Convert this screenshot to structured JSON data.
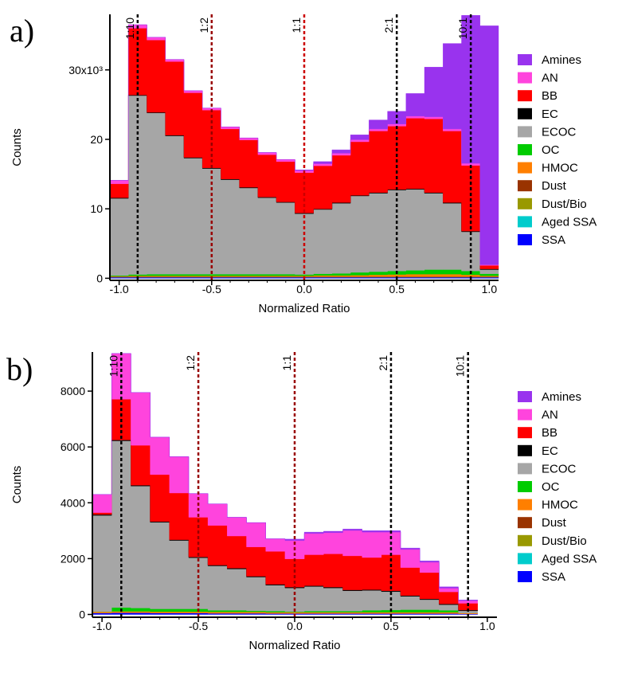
{
  "chart_data": [
    {
      "panel_label": "a)",
      "type": "area",
      "stacking": "stacked",
      "xlabel": "Normalized Ratio",
      "ylabel": "Counts",
      "xlim": [
        -1.05,
        1.05
      ],
      "ylim": [
        -300,
        38000
      ],
      "xticks": [
        {
          "value": -1.0,
          "label": "-1.0"
        },
        {
          "value": -0.5,
          "label": "-0.5"
        },
        {
          "value": 0.0,
          "label": "0.0"
        },
        {
          "value": 0.5,
          "label": "0.5"
        },
        {
          "value": 1.0,
          "label": "1.0"
        }
      ],
      "yticks": [
        {
          "value": 0,
          "label": "0"
        },
        {
          "value": 10000,
          "label": "10"
        },
        {
          "value": 20000,
          "label": "20"
        },
        {
          "value": 30000,
          "label": "30x10³"
        }
      ],
      "bin_edges": [
        -1.05,
        -0.95,
        -0.85,
        -0.75,
        -0.65,
        -0.55,
        -0.45,
        -0.35,
        -0.25,
        -0.15,
        -0.05,
        0.05,
        0.15,
        0.25,
        0.35,
        0.45,
        0.55,
        0.65,
        0.75,
        0.85,
        0.95,
        1.05
      ],
      "series": [
        {
          "name": "SSA",
          "color": "#0000ff",
          "values": [
            150,
            150,
            150,
            150,
            150,
            150,
            150,
            150,
            150,
            150,
            150,
            150,
            150,
            150,
            150,
            150,
            150,
            150,
            150,
            150,
            150
          ]
        },
        {
          "name": "Aged SSA",
          "color": "#00cccc",
          "values": [
            0,
            0,
            0,
            0,
            0,
            0,
            0,
            0,
            0,
            0,
            0,
            0,
            0,
            0,
            0,
            0,
            0,
            0,
            0,
            0,
            0
          ]
        },
        {
          "name": "Dust/Bio",
          "color": "#999900",
          "values": [
            50,
            50,
            50,
            50,
            50,
            50,
            50,
            50,
            50,
            50,
            50,
            50,
            50,
            50,
            50,
            50,
            50,
            50,
            50,
            50,
            50
          ]
        },
        {
          "name": "Dust",
          "color": "#993300",
          "values": [
            50,
            50,
            50,
            50,
            50,
            50,
            50,
            50,
            50,
            50,
            50,
            50,
            50,
            50,
            50,
            50,
            50,
            50,
            50,
            50,
            50
          ]
        },
        {
          "name": "HMOC",
          "color": "#ff7f00",
          "values": [
            50,
            100,
            100,
            100,
            100,
            100,
            100,
            100,
            100,
            100,
            100,
            150,
            150,
            200,
            250,
            300,
            350,
            350,
            350,
            250,
            100
          ]
        },
        {
          "name": "OC",
          "color": "#00cc00",
          "values": [
            100,
            200,
            250,
            250,
            250,
            250,
            250,
            250,
            250,
            250,
            200,
            250,
            300,
            400,
            450,
            500,
            550,
            650,
            650,
            550,
            300
          ]
        },
        {
          "name": "ECOC",
          "color": "#a6a6a6",
          "values": [
            11100,
            25750,
            23200,
            19900,
            16700,
            15200,
            13600,
            12400,
            11000,
            10300,
            8750,
            9250,
            10100,
            11000,
            11300,
            11650,
            11650,
            11000,
            9550,
            5650,
            600
          ]
        },
        {
          "name": "EC",
          "color": "#000000",
          "values": [
            100,
            100,
            100,
            100,
            100,
            100,
            100,
            100,
            100,
            100,
            100,
            100,
            100,
            100,
            100,
            100,
            100,
            100,
            100,
            100,
            100
          ]
        },
        {
          "name": "BB",
          "color": "#ff0000",
          "values": [
            2000,
            9600,
            10400,
            10600,
            9300,
            8300,
            7200,
            6800,
            6100,
            5800,
            5800,
            6200,
            6800,
            7700,
            8850,
            9100,
            10150,
            10600,
            10300,
            9450,
            500
          ]
        },
        {
          "name": "AN",
          "color": "#ff44dd",
          "values": [
            500,
            500,
            400,
            300,
            300,
            300,
            300,
            300,
            300,
            300,
            300,
            300,
            300,
            300,
            300,
            300,
            300,
            300,
            300,
            300,
            100
          ]
        },
        {
          "name": "Amines",
          "color": "#9933ee",
          "values": [
            0,
            0,
            0,
            0,
            0,
            0,
            0,
            0,
            0,
            0,
            100,
            300,
            500,
            700,
            1300,
            1850,
            3250,
            7150,
            12300,
            21300,
            34400
          ]
        }
      ],
      "ratio_lines": [
        {
          "label": "1:10",
          "x": -0.9,
          "color": "#000000"
        },
        {
          "label": "1:2",
          "x": -0.5,
          "color": "#990000"
        },
        {
          "label": "1:1",
          "x": 0.0,
          "color": "#cc0000"
        },
        {
          "label": "2:1",
          "x": 0.5,
          "color": "#000000"
        },
        {
          "label": "10:1",
          "x": 0.9,
          "color": "#000000"
        }
      ],
      "legend_position": "right"
    },
    {
      "panel_label": "b)",
      "type": "area",
      "stacking": "stacked",
      "xlabel": "Normalized Ratio",
      "ylabel": "Counts",
      "xlim": [
        -1.05,
        1.05
      ],
      "ylim": [
        -100,
        9400
      ],
      "xticks": [
        {
          "value": -1.0,
          "label": "-1.0"
        },
        {
          "value": -0.5,
          "label": "-0.5"
        },
        {
          "value": 0.0,
          "label": "0.0"
        },
        {
          "value": 0.5,
          "label": "0.5"
        },
        {
          "value": 1.0,
          "label": "1.0"
        }
      ],
      "yticks": [
        {
          "value": 0,
          "label": "0"
        },
        {
          "value": 2000,
          "label": "2000"
        },
        {
          "value": 4000,
          "label": "4000"
        },
        {
          "value": 6000,
          "label": "6000"
        },
        {
          "value": 8000,
          "label": "8000"
        }
      ],
      "bin_edges": [
        -1.05,
        -0.95,
        -0.85,
        -0.75,
        -0.65,
        -0.55,
        -0.45,
        -0.35,
        -0.25,
        -0.15,
        -0.05,
        0.05,
        0.15,
        0.25,
        0.35,
        0.45,
        0.55,
        0.65,
        0.75,
        0.85,
        0.95
      ],
      "series": [
        {
          "name": "SSA",
          "color": "#0000ff",
          "values": [
            50,
            60,
            60,
            50,
            50,
            50,
            40,
            40,
            40,
            30,
            30,
            30,
            30,
            30,
            30,
            30,
            30,
            30,
            30,
            20
          ]
        },
        {
          "name": "Aged SSA",
          "color": "#00cccc",
          "values": [
            0,
            0,
            0,
            0,
            0,
            0,
            0,
            0,
            0,
            0,
            0,
            0,
            0,
            0,
            0,
            0,
            0,
            0,
            0,
            0
          ]
        },
        {
          "name": "Dust/Bio",
          "color": "#999900",
          "values": [
            0,
            0,
            0,
            0,
            0,
            0,
            0,
            0,
            0,
            0,
            0,
            0,
            0,
            0,
            0,
            0,
            0,
            0,
            0,
            0
          ]
        },
        {
          "name": "Dust",
          "color": "#993300",
          "values": [
            0,
            0,
            0,
            0,
            0,
            0,
            0,
            0,
            0,
            0,
            0,
            0,
            0,
            0,
            0,
            0,
            0,
            0,
            0,
            0
          ]
        },
        {
          "name": "HMOC",
          "color": "#ff7f00",
          "values": [
            50,
            50,
            50,
            50,
            50,
            50,
            50,
            50,
            50,
            50,
            50,
            50,
            50,
            50,
            50,
            50,
            50,
            50,
            50,
            30
          ]
        },
        {
          "name": "OC",
          "color": "#00cc00",
          "values": [
            0,
            140,
            120,
            100,
            100,
            100,
            60,
            60,
            40,
            40,
            20,
            40,
            40,
            40,
            70,
            80,
            90,
            90,
            70,
            0
          ]
        },
        {
          "name": "ECOC",
          "color": "#a6a6a6",
          "values": [
            3450,
            5970,
            4370,
            3100,
            2450,
            1830,
            1590,
            1480,
            1210,
            930,
            850,
            880,
            830,
            730,
            710,
            660,
            480,
            360,
            200,
            80
          ]
        },
        {
          "name": "EC",
          "color": "#000000",
          "values": [
            30,
            30,
            30,
            30,
            30,
            30,
            30,
            30,
            30,
            30,
            30,
            30,
            30,
            30,
            30,
            30,
            30,
            30,
            30,
            30
          ]
        },
        {
          "name": "BB",
          "color": "#ff0000",
          "values": [
            70,
            1460,
            1430,
            1680,
            1670,
            1420,
            1420,
            1150,
            1050,
            1180,
            1010,
            1110,
            1190,
            1220,
            1150,
            1290,
            1000,
            940,
            430,
            240
          ]
        },
        {
          "name": "AN",
          "color": "#ff44dd",
          "values": [
            650,
            1640,
            1890,
            1340,
            1300,
            850,
            770,
            670,
            870,
            450,
            660,
            760,
            760,
            910,
            910,
            810,
            650,
            370,
            130,
            90
          ]
        },
        {
          "name": "Amines",
          "color": "#9933ee",
          "values": [
            0,
            0,
            0,
            0,
            0,
            0,
            0,
            0,
            0,
            0,
            50,
            50,
            50,
            50,
            50,
            50,
            50,
            50,
            50,
            30
          ]
        }
      ],
      "ratio_lines": [
        {
          "label": "1:10",
          "x": -0.9,
          "color": "#000000"
        },
        {
          "label": "1:2",
          "x": -0.5,
          "color": "#990000"
        },
        {
          "label": "1:1",
          "x": 0.0,
          "color": "#990000"
        },
        {
          "label": "2:1",
          "x": 0.5,
          "color": "#000000"
        },
        {
          "label": "10:1",
          "x": 0.9,
          "color": "#000000"
        }
      ],
      "legend_position": "right"
    }
  ]
}
